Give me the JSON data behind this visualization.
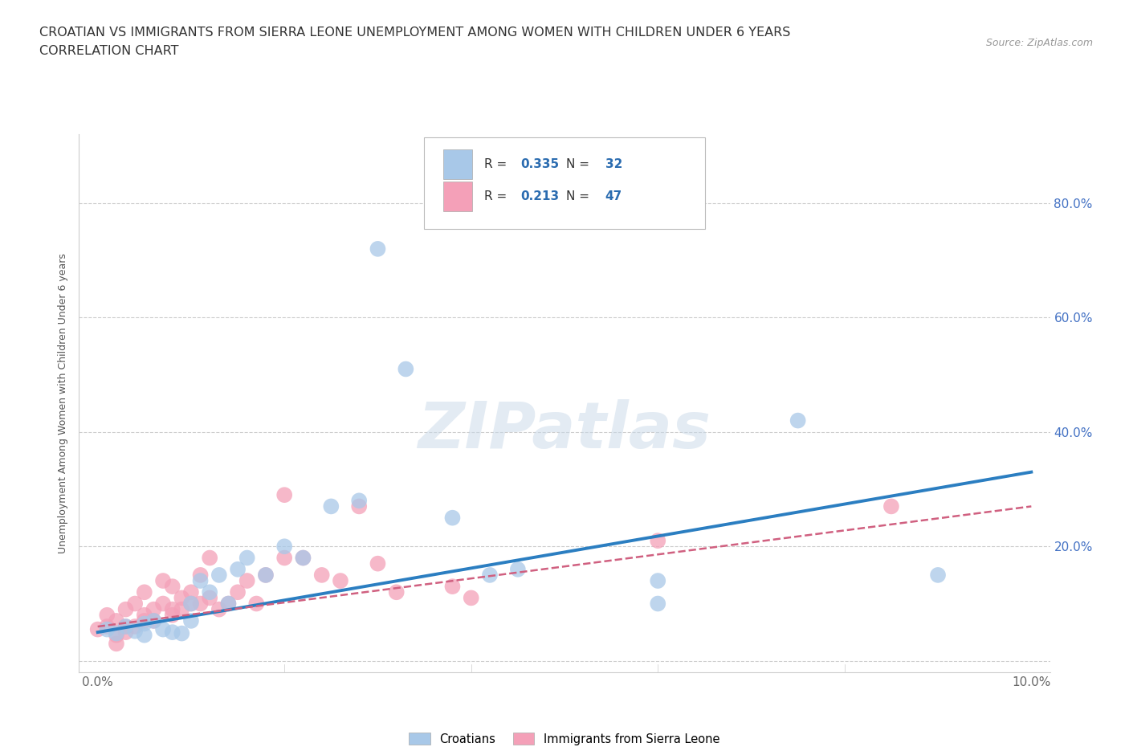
{
  "title_line1": "CROATIAN VS IMMIGRANTS FROM SIERRA LEONE UNEMPLOYMENT AMONG WOMEN WITH CHILDREN UNDER 6 YEARS",
  "title_line2": "CORRELATION CHART",
  "source_text": "Source: ZipAtlas.com",
  "ylabel": "Unemployment Among Women with Children Under 6 years",
  "watermark": "ZIPatlas",
  "croatian_R": 0.335,
  "croatian_N": 32,
  "sierra_leone_R": 0.213,
  "sierra_leone_N": 47,
  "xlim": [
    -0.002,
    0.102
  ],
  "ylim": [
    -0.02,
    0.92
  ],
  "x_ticks": [
    0.0,
    0.02,
    0.04,
    0.06,
    0.08,
    0.1
  ],
  "x_tick_labels": [
    "0.0%",
    "",
    "",
    "",
    "",
    "10.0%"
  ],
  "y_ticks": [
    0.0,
    0.2,
    0.4,
    0.6,
    0.8
  ],
  "y_tick_labels_right": [
    "",
    "20.0%",
    "40.0%",
    "60.0%",
    "80.0%"
  ],
  "croatian_color": "#A8C8E8",
  "sierra_leone_color": "#F4A0B8",
  "croatian_line_color": "#2B7EC1",
  "sierra_leone_line_color": "#D06080",
  "croatian_x": [
    0.001,
    0.002,
    0.003,
    0.004,
    0.005,
    0.005,
    0.006,
    0.007,
    0.008,
    0.009,
    0.01,
    0.01,
    0.011,
    0.012,
    0.013,
    0.014,
    0.015,
    0.016,
    0.018,
    0.02,
    0.022,
    0.025,
    0.028,
    0.03,
    0.033,
    0.038,
    0.042,
    0.045,
    0.06,
    0.06,
    0.075,
    0.09
  ],
  "croatian_y": [
    0.055,
    0.048,
    0.06,
    0.052,
    0.045,
    0.065,
    0.07,
    0.055,
    0.05,
    0.048,
    0.1,
    0.07,
    0.14,
    0.12,
    0.15,
    0.1,
    0.16,
    0.18,
    0.15,
    0.2,
    0.18,
    0.27,
    0.28,
    0.72,
    0.51,
    0.25,
    0.15,
    0.16,
    0.14,
    0.1,
    0.42,
    0.15
  ],
  "sierra_leone_x": [
    0.0,
    0.001,
    0.001,
    0.002,
    0.002,
    0.002,
    0.003,
    0.003,
    0.003,
    0.004,
    0.004,
    0.005,
    0.005,
    0.005,
    0.006,
    0.006,
    0.007,
    0.007,
    0.008,
    0.008,
    0.008,
    0.009,
    0.009,
    0.01,
    0.01,
    0.011,
    0.011,
    0.012,
    0.012,
    0.013,
    0.014,
    0.015,
    0.016,
    0.017,
    0.018,
    0.02,
    0.022,
    0.024,
    0.026,
    0.028,
    0.03,
    0.032,
    0.038,
    0.04,
    0.06,
    0.085,
    0.02
  ],
  "sierra_leone_y": [
    0.055,
    0.06,
    0.08,
    0.03,
    0.07,
    0.045,
    0.05,
    0.09,
    0.06,
    0.06,
    0.1,
    0.08,
    0.12,
    0.07,
    0.07,
    0.09,
    0.1,
    0.14,
    0.08,
    0.13,
    0.09,
    0.09,
    0.11,
    0.12,
    0.1,
    0.1,
    0.15,
    0.11,
    0.18,
    0.09,
    0.1,
    0.12,
    0.14,
    0.1,
    0.15,
    0.18,
    0.18,
    0.15,
    0.14,
    0.27,
    0.17,
    0.12,
    0.13,
    0.11,
    0.21,
    0.27,
    0.29
  ]
}
